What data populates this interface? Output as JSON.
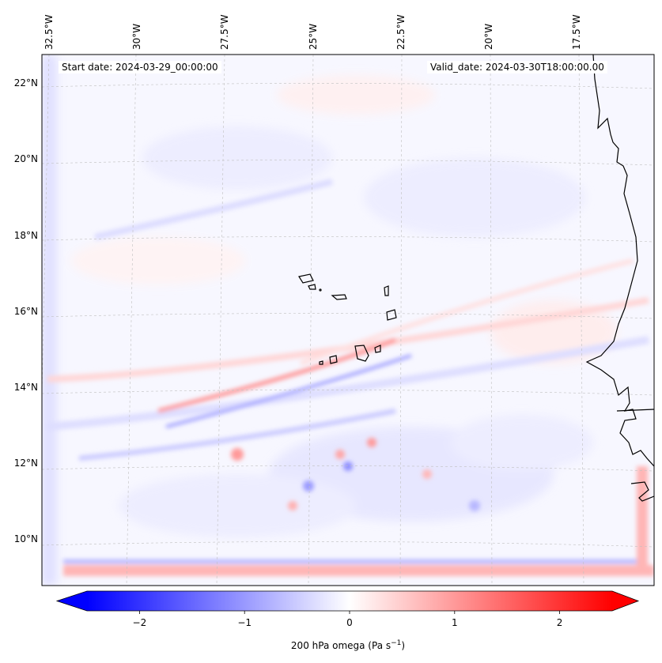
{
  "map": {
    "start_date": "Start date: 2024-03-29_00:00:00",
    "valid_date": "Valid_date: 2024-03-30T18:00:00.00",
    "lon_labels": [
      "32.5°W",
      "30°W",
      "27.5°W",
      "25°W",
      "22.5°W",
      "20°W",
      "17.5°W"
    ],
    "lat_labels": [
      "22°N",
      "20°N",
      "18°N",
      "16°N",
      "14°N",
      "12°N",
      "10°N"
    ],
    "field": "200 hPa omega",
    "colors": {
      "negative": "#0000ff",
      "zero": "#ffffff",
      "positive": "#ff0000",
      "coast": "#000000",
      "grid": "#bbbbbb"
    }
  },
  "colorbar": {
    "label": "200 hPa omega (Pa s",
    "label_sup": "−1",
    "label_close": ")",
    "ticks": [
      "−2",
      "−1",
      "0",
      "1",
      "2"
    ],
    "tick_values": [
      -2,
      -1,
      0,
      1,
      2
    ],
    "range": [
      -2.5,
      2.5
    ],
    "extend": "both"
  }
}
